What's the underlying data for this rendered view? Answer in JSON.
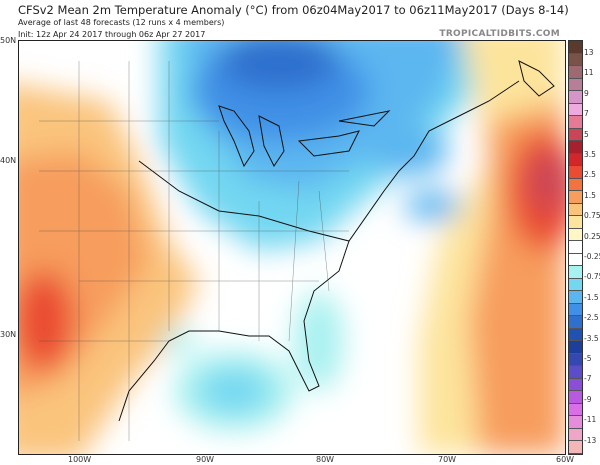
{
  "header": {
    "title": "CFSv2 Mean 2m Temperature Anomaly (°C) from 06z04May2017 to 06z11May2017 (Days 8-14)",
    "subtitle": "Average of last 48 forecasts (12 runs x 4 members)",
    "init": "Init: 12z Apr 24 2017 through 06z Apr 27 2017",
    "brand": "TROPICALTIDBITS.COM"
  },
  "axes": {
    "lat": [
      "50N",
      "40N",
      "30N"
    ],
    "lon": [
      "100W",
      "90W",
      "80W",
      "70W",
      "60W"
    ]
  },
  "colorbar": {
    "labels": [
      "13",
      "11",
      "9",
      "7",
      "5",
      "3.5",
      "2.5",
      "1.5",
      "0.75",
      "0.25",
      "-0.25",
      "-0.75",
      "-1.5",
      "-2.5",
      "-3.5",
      "-5",
      "-7",
      "-9",
      "-11",
      "-13"
    ],
    "colors": [
      "#5a3a2c",
      "#7a5248",
      "#9c6a70",
      "#b77e97",
      "#d595c9",
      "#eeaadf",
      "#e67a94",
      "#c94659",
      "#a81f2e",
      "#d3262a",
      "#ea4b32",
      "#f3733f",
      "#f79d5d",
      "#fac47d",
      "#fde49c",
      "#fff6c6",
      "#ffffff",
      "#ffffff",
      "#a7f1f0",
      "#73d7f1",
      "#5bb6f0",
      "#3f90e6",
      "#2f6fce",
      "#1f52b3",
      "#1d3f9c",
      "#3547b0",
      "#5b4cc7",
      "#8a4fd6",
      "#b958e0",
      "#d86fe6",
      "#e58cda",
      "#eea5c8",
      "#f4b7b8"
    ]
  }
}
